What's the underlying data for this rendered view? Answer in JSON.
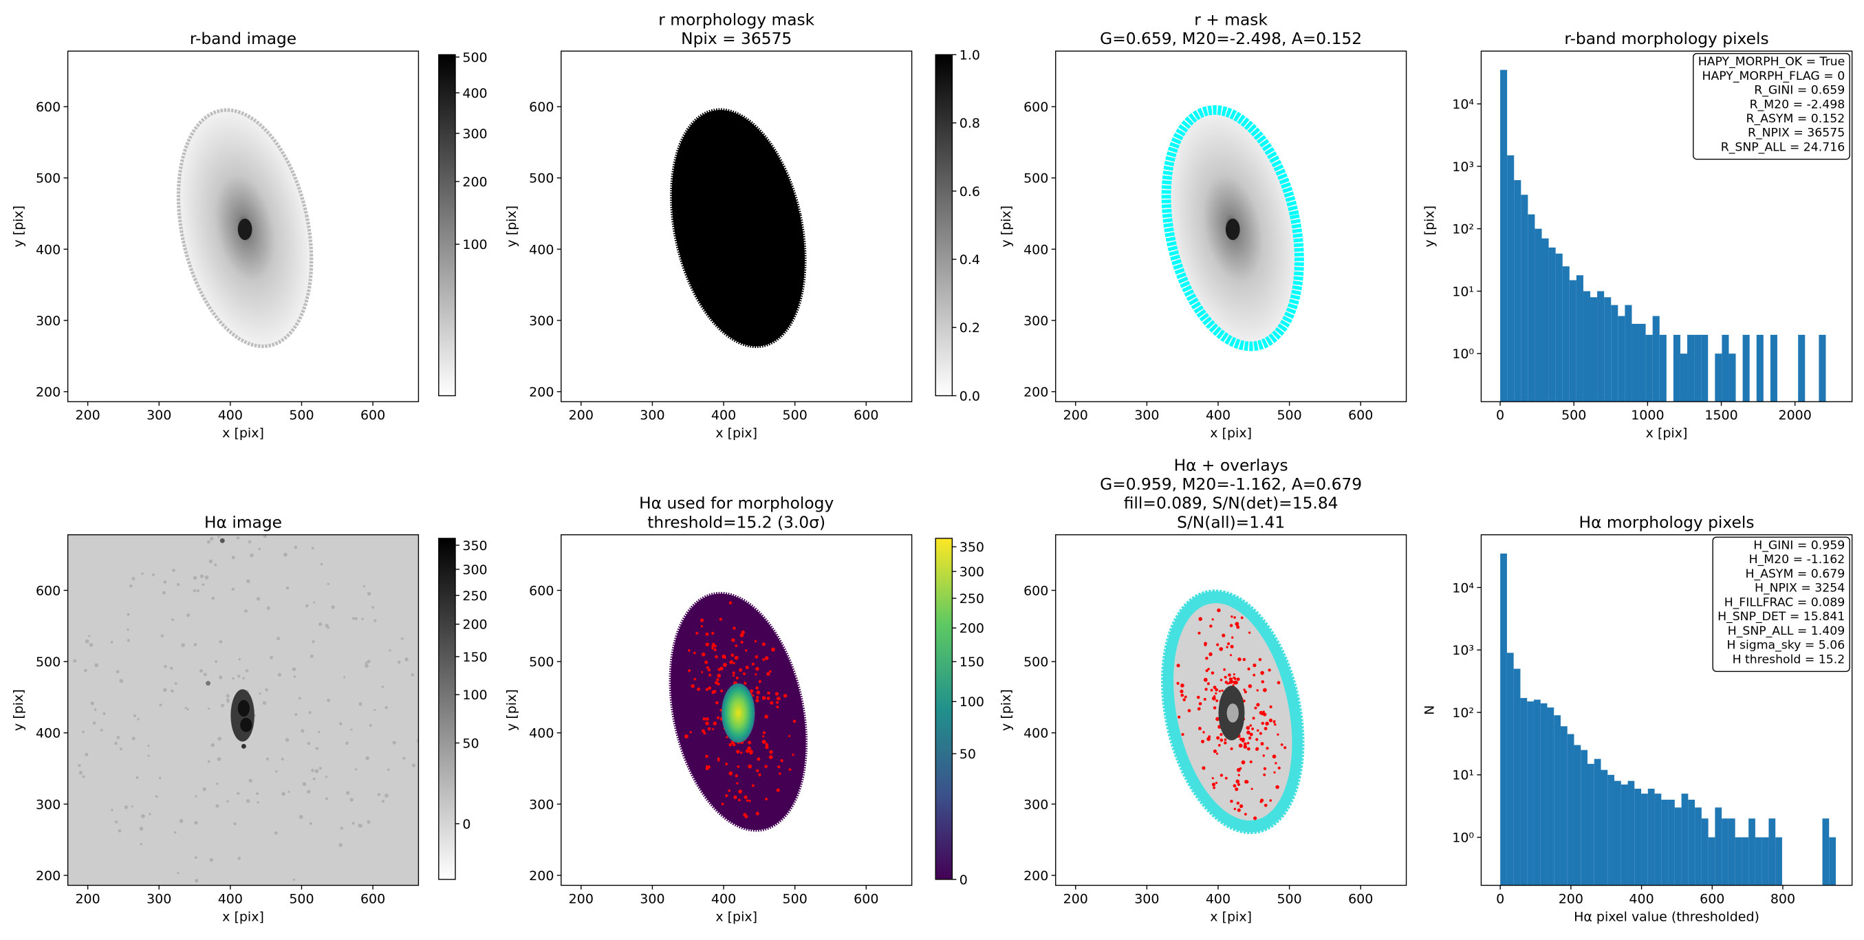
{
  "chart_data": [
    {
      "type": "image",
      "title": [
        "r-band image"
      ],
      "xlabel": "x [pix]",
      "ylabel": "y [pix]",
      "xlim": [
        172,
        664
      ],
      "ylim": [
        186,
        678
      ],
      "xticks": [
        200,
        300,
        400,
        500,
        600
      ],
      "yticks": [
        200,
        300,
        400,
        500,
        600
      ],
      "colorbar": {
        "cmap": "gray_r",
        "scale": "sqrt",
        "clim": [
          0,
          507
        ],
        "ticks": [
          100,
          200,
          300,
          400,
          500
        ]
      }
    },
    {
      "type": "image",
      "title": [
        "r morphology mask",
        "Npix = 36575"
      ],
      "xlabel": "x [pix]",
      "ylabel": "y [pix]",
      "xlim": [
        172,
        664
      ],
      "ylim": [
        186,
        678
      ],
      "xticks": [
        200,
        300,
        400,
        500,
        600
      ],
      "yticks": [
        200,
        300,
        400,
        500,
        600
      ],
      "colorbar": {
        "cmap": "gray_r",
        "scale": "linear",
        "clim": [
          0,
          1
        ],
        "ticks": [
          {
            "value": 0,
            "label": "0.0"
          },
          0.2,
          0.4,
          0.6,
          0.8,
          {
            "value": 1,
            "label": "1.0"
          }
        ]
      }
    },
    {
      "type": "image",
      "title": [
        "r + mask",
        "G=0.659, M20=-2.498, A=0.152"
      ],
      "xlabel": "x [pix]",
      "ylabel": "y [pix]",
      "xlim": [
        172,
        664
      ],
      "ylim": [
        186,
        678
      ],
      "xticks": [
        200,
        300,
        400,
        500,
        600
      ],
      "yticks": [
        200,
        300,
        400,
        500,
        600
      ]
    },
    {
      "type": "histogram",
      "title": [
        "r-band morphology pixels"
      ],
      "xlabel": "x [pix]",
      "ylabel": "y [pix]",
      "color": "#1f77b4",
      "log_y": true,
      "xlim": [
        -129,
        2387
      ],
      "ylim": [
        0.17,
        70000
      ],
      "xticks": [
        0,
        500,
        1000,
        1500,
        2000
      ],
      "yticks": [
        {
          "value": 1,
          "label": "10⁰"
        },
        {
          "value": 10,
          "label": "10¹"
        },
        {
          "value": 100,
          "label": "10²"
        },
        {
          "value": 1000,
          "label": "10³"
        },
        {
          "value": 10000,
          "label": "10⁴"
        }
      ],
      "bins": [
        0,
        47,
        94,
        141,
        188,
        235,
        282,
        329,
        376,
        423,
        470,
        517,
        564,
        611,
        658,
        705,
        752,
        799,
        846,
        893,
        940,
        987,
        1034,
        1081,
        1128,
        1175,
        1222,
        1269,
        1316,
        1363,
        1410,
        1457,
        1504,
        1551,
        1598,
        1645,
        1692,
        1739,
        1786,
        1833,
        1880,
        1927,
        1974,
        2021,
        2068,
        2115,
        2162,
        2209,
        2256
      ],
      "counts": [
        35000,
        1500,
        600,
        350,
        170,
        100,
        70,
        50,
        40,
        25,
        15,
        18,
        10,
        8,
        10,
        8,
        6,
        4,
        6,
        3,
        3,
        2,
        4,
        2,
        0,
        2,
        1,
        2,
        2,
        2,
        0,
        1,
        2,
        1,
        0,
        2,
        0,
        2,
        0,
        2,
        0,
        0,
        0,
        2,
        0,
        0,
        2,
        0
      ],
      "textbox": [
        "HAPY_MORPH_OK = True",
        "HAPY_MORPH_FLAG = 0",
        "R_GINI = 0.659",
        "R_M20 = -2.498",
        "R_ASYM = 0.152",
        "R_NPIX = 36575",
        "R_SNP_ALL = 24.716"
      ]
    },
    {
      "type": "image",
      "title": [
        "Hα image"
      ],
      "xlabel": "x [pix]",
      "ylabel": "y [pix]",
      "xlim": [
        172,
        664
      ],
      "ylim": [
        186,
        678
      ],
      "xticks": [
        200,
        300,
        400,
        500,
        600
      ],
      "yticks": [
        200,
        300,
        400,
        500,
        600
      ],
      "colorbar": {
        "cmap": "gray_r",
        "scale": "sqrt",
        "clim": [
          -10,
          365
        ],
        "ticks": [
          0,
          50,
          100,
          150,
          200,
          250,
          300,
          350
        ]
      }
    },
    {
      "type": "image",
      "title": [
        "Hα used for morphology",
        "threshold=15.2 (3.0σ)"
      ],
      "xlabel": "x [pix]",
      "ylabel": "y [pix]",
      "xlim": [
        172,
        664
      ],
      "ylim": [
        186,
        678
      ],
      "xticks": [
        200,
        300,
        400,
        500,
        600
      ],
      "yticks": [
        200,
        300,
        400,
        500,
        600
      ],
      "colorbar": {
        "cmap": "viridis",
        "scale": "sqrt",
        "clim": [
          0,
          368
        ],
        "ticks": [
          0,
          50,
          100,
          150,
          200,
          250,
          300,
          350
        ]
      }
    },
    {
      "type": "image",
      "title": [
        "Hα + overlays",
        "G=0.959, M20=-1.162, A=0.679",
        "fill=0.089, S/N(det)=15.84",
        "S/N(all)=1.41"
      ],
      "xlabel": "x [pix]",
      "ylabel": "y [pix]",
      "xlim": [
        172,
        664
      ],
      "ylim": [
        186,
        678
      ],
      "xticks": [
        200,
        300,
        400,
        500,
        600
      ],
      "yticks": [
        200,
        300,
        400,
        500,
        600
      ]
    },
    {
      "type": "histogram",
      "title": [
        "Hα morphology pixels"
      ],
      "xlabel": "Hα pixel value (thresholded)",
      "ylabel": "N",
      "color": "#1f77b4",
      "log_y": true,
      "xlim": [
        -54,
        996
      ],
      "ylim": [
        0.17,
        70000
      ],
      "xticks": [
        0,
        200,
        400,
        600,
        800
      ],
      "yticks": [
        {
          "value": 1,
          "label": "10⁰"
        },
        {
          "value": 10,
          "label": "10¹"
        },
        {
          "value": 100,
          "label": "10²"
        },
        {
          "value": 1000,
          "label": "10³"
        },
        {
          "value": 10000,
          "label": "10⁴"
        }
      ],
      "bins": [
        0,
        19,
        38,
        57,
        76,
        95,
        114,
        133,
        152,
        171,
        190,
        209,
        228,
        247,
        266,
        285,
        304,
        323,
        342,
        361,
        380,
        399,
        418,
        437,
        456,
        475,
        494,
        513,
        532,
        551,
        570,
        589,
        608,
        627,
        646,
        665,
        684,
        703,
        722,
        741,
        760,
        779,
        798,
        817,
        836,
        855,
        874,
        893,
        912,
        931,
        950
      ],
      "counts": [
        35000,
        900,
        500,
        170,
        150,
        160,
        140,
        120,
        90,
        60,
        45,
        30,
        25,
        15,
        18,
        12,
        10,
        8,
        7,
        8,
        6,
        5,
        6,
        5,
        4,
        4,
        3,
        5,
        4,
        3,
        2,
        1,
        3,
        2,
        2,
        1,
        1,
        2,
        1,
        1,
        2,
        1,
        0,
        0,
        0,
        0,
        0,
        0,
        2,
        1
      ],
      "textbox": [
        "H_GINI = 0.959",
        "H_M20 = -1.162",
        "H_ASYM = 0.679",
        "H_NPIX = 3254",
        "H_FILLFRAC = 0.089",
        "H_SNP_DET = 15.841",
        "H_SNP_ALL = 1.409",
        "H sigma_sky = 5.06",
        "H threshold = 15.2"
      ]
    }
  ]
}
